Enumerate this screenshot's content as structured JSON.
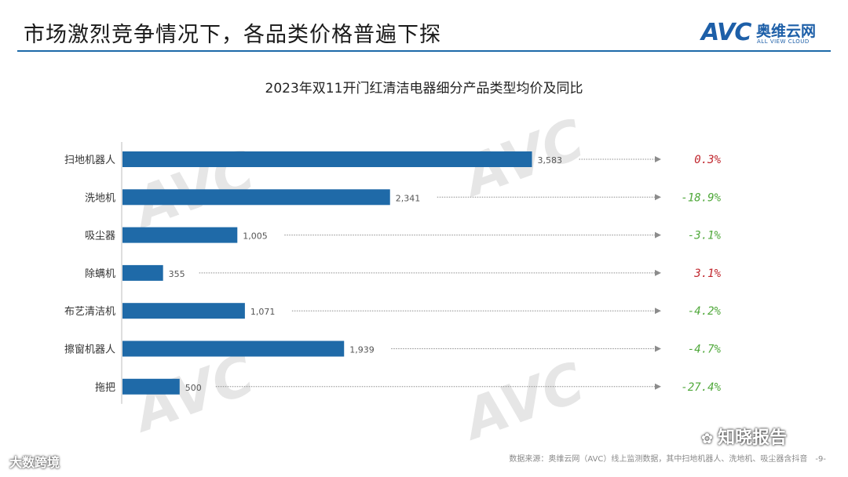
{
  "header": {
    "title": "市场激烈竞争情况下，各品类价格普遍下探",
    "logo_mark": "AVC",
    "logo_cn": "奥维云网",
    "logo_en": "ALL VIEW CLOUD"
  },
  "chart_data": {
    "type": "bar",
    "orientation": "horizontal",
    "title": "2023年双11开门红清洁电器细分产品类型均价及同比",
    "categories": [
      "扫地机器人",
      "洗地机",
      "吸尘器",
      "除螨机",
      "布艺清洁机",
      "擦窗机器人",
      "拖把"
    ],
    "values": [
      3583,
      2341,
      1005,
      355,
      1071,
      1939,
      500
    ],
    "value_labels": [
      "3,583",
      "2,341",
      "1,005",
      "355",
      "1,071",
      "1,939",
      "500"
    ],
    "yoy_labels": [
      "0.3%",
      "-18.9%",
      "-3.1%",
      "3.1%",
      "-4.2%",
      "-4.7%",
      "-27.4%"
    ],
    "yoy_values": [
      0.3,
      -18.9,
      -3.1,
      3.1,
      -4.2,
      -4.7,
      -27.4
    ],
    "xlim": [
      0,
      3600
    ],
    "grid": false,
    "colors": {
      "bar": "#1f6aa8",
      "yoy_positive": "#c0262d",
      "yoy_negative": "#4fa83a",
      "arrow": "#8c8c8c"
    }
  },
  "footer": {
    "source": "数据来源：奥维云网（AVC）线上监测数据，其中扫地机器人、洗地机、吸尘器含抖音",
    "page": "-9-"
  },
  "watermarks": {
    "left": "大数跨境",
    "right": "知晓报告",
    "right_icon": "wechat-icon",
    "background_mark": "AVC"
  }
}
